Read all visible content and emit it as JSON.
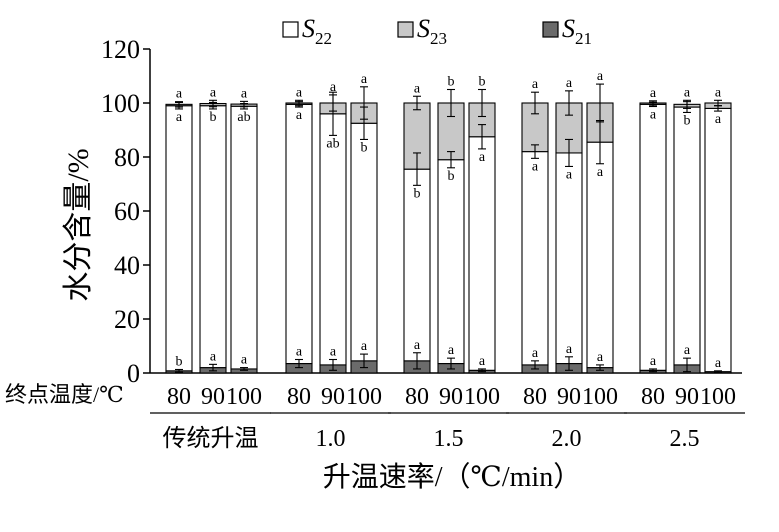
{
  "chart_data": {
    "type": "bar",
    "stacked": true,
    "legend": {
      "position": "top",
      "entries": [
        {
          "key": "S22",
          "base": "S",
          "sub": "22",
          "color": "#ffffff"
        },
        {
          "key": "S23",
          "base": "S",
          "sub": "23",
          "color": "#c8c8c8"
        },
        {
          "key": "S21",
          "base": "S",
          "sub": "21",
          "color": "#6b6b6b"
        }
      ]
    },
    "ylabel": "水分含量/%",
    "xlabel": "升温速率/（℃/min）",
    "ylim": [
      0,
      120
    ],
    "yticks": [
      0,
      20,
      40,
      60,
      80,
      100,
      120
    ],
    "row_label": "终点温度/℃",
    "groups": [
      {
        "label": "传统升温",
        "bars": [
          {
            "temp": "80",
            "s21": 0.8,
            "s22": 98.2,
            "s23": 0.5,
            "err21": 0.5,
            "err22": 1.2,
            "err23": 1.0,
            "let21": "b",
            "let22": "a",
            "let23": "a"
          },
          {
            "temp": "90",
            "s21": 2.0,
            "s22": 97.0,
            "s23": 0.8,
            "err21": 1.2,
            "err22": 1.2,
            "err23": 1.2,
            "let21": "a",
            "let22": "b",
            "let23": "a"
          },
          {
            "temp": "100",
            "s21": 1.5,
            "s22": 97.3,
            "s23": 0.8,
            "err21": 0.5,
            "err22": 1.0,
            "err23": 1.0,
            "let21": "a",
            "let22": "ab",
            "let23": "a"
          }
        ]
      },
      {
        "label": "1.0",
        "bars": [
          {
            "temp": "80",
            "s21": 3.5,
            "s22": 96.0,
            "s23": 0.5,
            "err21": 1.5,
            "err22": 1.0,
            "err23": 1.0,
            "let21": "a",
            "let22": "a",
            "let23": "a"
          },
          {
            "temp": "90",
            "s21": 3.0,
            "s22": 93.0,
            "s23": 4.0,
            "err21": 2.0,
            "err22": 8.0,
            "err23": 3.0,
            "let21": "a",
            "let22": "ab",
            "let23": "a"
          },
          {
            "temp": "100",
            "s21": 4.5,
            "s22": 88.0,
            "s23": 7.5,
            "err21": 2.5,
            "err22": 6.0,
            "err23": 6.0,
            "let21": "a",
            "let22": "b",
            "let23": "a"
          }
        ]
      },
      {
        "label": "1.5",
        "bars": [
          {
            "temp": "80",
            "s21": 4.5,
            "s22": 71.0,
            "s23": 24.5,
            "err21": 3.0,
            "err22": 6.0,
            "err23": 2.5,
            "let21": "a",
            "let22": "b",
            "let23": "a"
          },
          {
            "temp": "90",
            "s21": 3.5,
            "s22": 75.5,
            "s23": 21.0,
            "err21": 2.0,
            "err22": 3.0,
            "err23": 5.0,
            "let21": "a",
            "let22": "b",
            "let23": "b"
          },
          {
            "temp": "100",
            "s21": 1.0,
            "s22": 86.5,
            "s23": 12.5,
            "err21": 0.5,
            "err22": 4.5,
            "err23": 5.0,
            "let21": "a",
            "let22": "a",
            "let23": "b"
          }
        ]
      },
      {
        "label": "2.0",
        "bars": [
          {
            "temp": "80",
            "s21": 3.0,
            "s22": 79.0,
            "s23": 18.0,
            "err21": 1.5,
            "err22": 2.5,
            "err23": 4.0,
            "let21": "a",
            "let22": "a",
            "let23": "a"
          },
          {
            "temp": "90",
            "s21": 3.5,
            "s22": 78.0,
            "s23": 18.5,
            "err21": 2.5,
            "err22": 5.0,
            "err23": 4.5,
            "let21": "a",
            "let22": "a",
            "let23": "a"
          },
          {
            "temp": "100",
            "s21": 2.0,
            "s22": 83.5,
            "s23": 14.5,
            "err21": 1.0,
            "err22": 8.0,
            "err23": 7.0,
            "let21": "a",
            "let22": "a",
            "let23": "a"
          }
        ]
      },
      {
        "label": "2.5",
        "bars": [
          {
            "temp": "80",
            "s21": 1.0,
            "s22": 98.5,
            "s23": 0.5,
            "err21": 0.5,
            "err22": 0.8,
            "err23": 0.8,
            "let21": "a",
            "let22": "a",
            "let23": "a"
          },
          {
            "temp": "90",
            "s21": 3.0,
            "s22": 95.5,
            "s23": 1.0,
            "err21": 2.5,
            "err22": 2.0,
            "err23": 1.5,
            "let21": "a",
            "let22": "b",
            "let23": "a"
          },
          {
            "temp": "100",
            "s21": 0.5,
            "s22": 97.5,
            "s23": 2.0,
            "err21": 0.3,
            "err22": 1.0,
            "err23": 1.0,
            "let21": "a",
            "let22": "a",
            "let23": "a"
          }
        ]
      }
    ]
  }
}
